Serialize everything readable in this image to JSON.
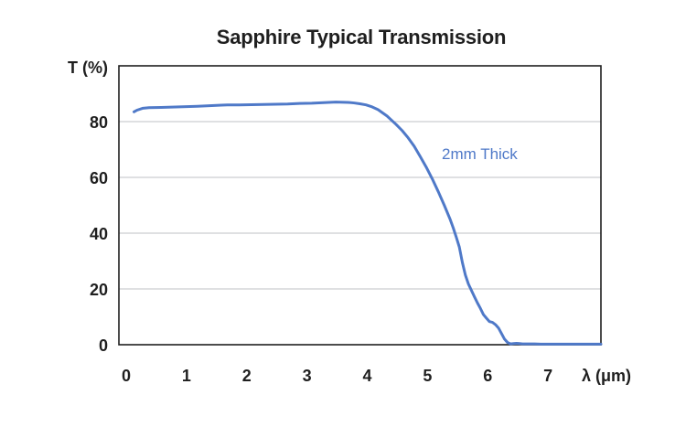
{
  "chart_data": {
    "type": "line",
    "title": "Sapphire Typical Transmission",
    "xlabel": "λ (μm)",
    "ylabel": "T (%)",
    "xlim": [
      0,
      8
    ],
    "ylim": [
      0,
      100
    ],
    "grid": true,
    "x_ticks": [
      "0",
      "1",
      "2",
      "3",
      "4",
      "5",
      "6",
      "7"
    ],
    "y_ticks": [
      "0",
      "20",
      "40",
      "60",
      "80"
    ],
    "series": [
      {
        "name": "2mm Thick",
        "color": "#4f79c8",
        "x": [
          0.25,
          0.3,
          0.4,
          0.5,
          0.7,
          1.0,
          1.3,
          1.5,
          1.7,
          1.8,
          2.0,
          2.3,
          2.5,
          2.8,
          3.0,
          3.2,
          3.4,
          3.6,
          3.8,
          3.9,
          4.0,
          4.1,
          4.2,
          4.3,
          4.45,
          4.6,
          4.7,
          4.8,
          4.9,
          5.0,
          5.1,
          5.2,
          5.3,
          5.4,
          5.5,
          5.55,
          5.6,
          5.65,
          5.7,
          5.75,
          5.8,
          5.85,
          5.9,
          5.95,
          6.0,
          6.05,
          6.1,
          6.15,
          6.2,
          6.25,
          6.3,
          6.35,
          6.4,
          6.45,
          6.5,
          6.55,
          6.6,
          6.65,
          6.7,
          6.8,
          6.9,
          7.0,
          7.2,
          7.5,
          7.8,
          8.0
        ],
        "y": [
          83.5,
          84.1,
          84.8,
          85.0,
          85.1,
          85.3,
          85.5,
          85.7,
          85.9,
          86.0,
          86.0,
          86.1,
          86.2,
          86.3,
          86.5,
          86.6,
          86.8,
          87.0,
          86.9,
          86.7,
          86.4,
          86.0,
          85.3,
          84.3,
          82.0,
          79.0,
          76.8,
          74.2,
          71.2,
          67.5,
          63.7,
          59.5,
          54.9,
          50.0,
          44.8,
          41.8,
          38.5,
          35.0,
          29.5,
          25.0,
          21.8,
          19.5,
          17.2,
          15.0,
          13.0,
          10.8,
          9.5,
          8.3,
          8.0,
          7.2,
          6.0,
          4.0,
          2.0,
          0.8,
          0.3,
          0.4,
          0.5,
          0.4,
          0.3,
          0.3,
          0.3,
          0.2,
          0.2,
          0.2,
          0.2,
          0.2
        ]
      }
    ]
  }
}
